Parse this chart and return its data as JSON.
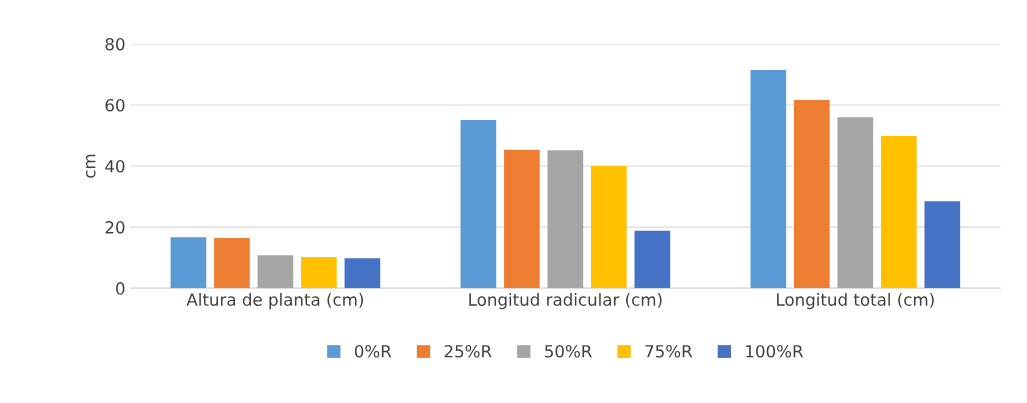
{
  "chart_data": {
    "type": "bar",
    "ylabel": "cm",
    "categories": [
      "Altura de planta (cm)",
      "Longitud radicular (cm)",
      "Longitud total (cm)"
    ],
    "series": [
      {
        "name": "0%R",
        "color": "#5b9bd5",
        "values": [
          16.7,
          55.1,
          71.5
        ]
      },
      {
        "name": "25%R",
        "color": "#ed7d31",
        "values": [
          16.4,
          45.3,
          61.6
        ]
      },
      {
        "name": "50%R",
        "color": "#a5a5a5",
        "values": [
          10.8,
          45.2,
          56
        ]
      },
      {
        "name": "75%R",
        "color": "#ffc000",
        "values": [
          10.2,
          40,
          49.8
        ]
      },
      {
        "name": "100%R",
        "color": "#4472c4",
        "values": [
          9.8,
          18.8,
          28.5
        ]
      }
    ],
    "ylim": [
      0,
      80
    ],
    "yticks": [
      0,
      20,
      40,
      60,
      80
    ],
    "grid": "y",
    "legend": "bottom"
  }
}
